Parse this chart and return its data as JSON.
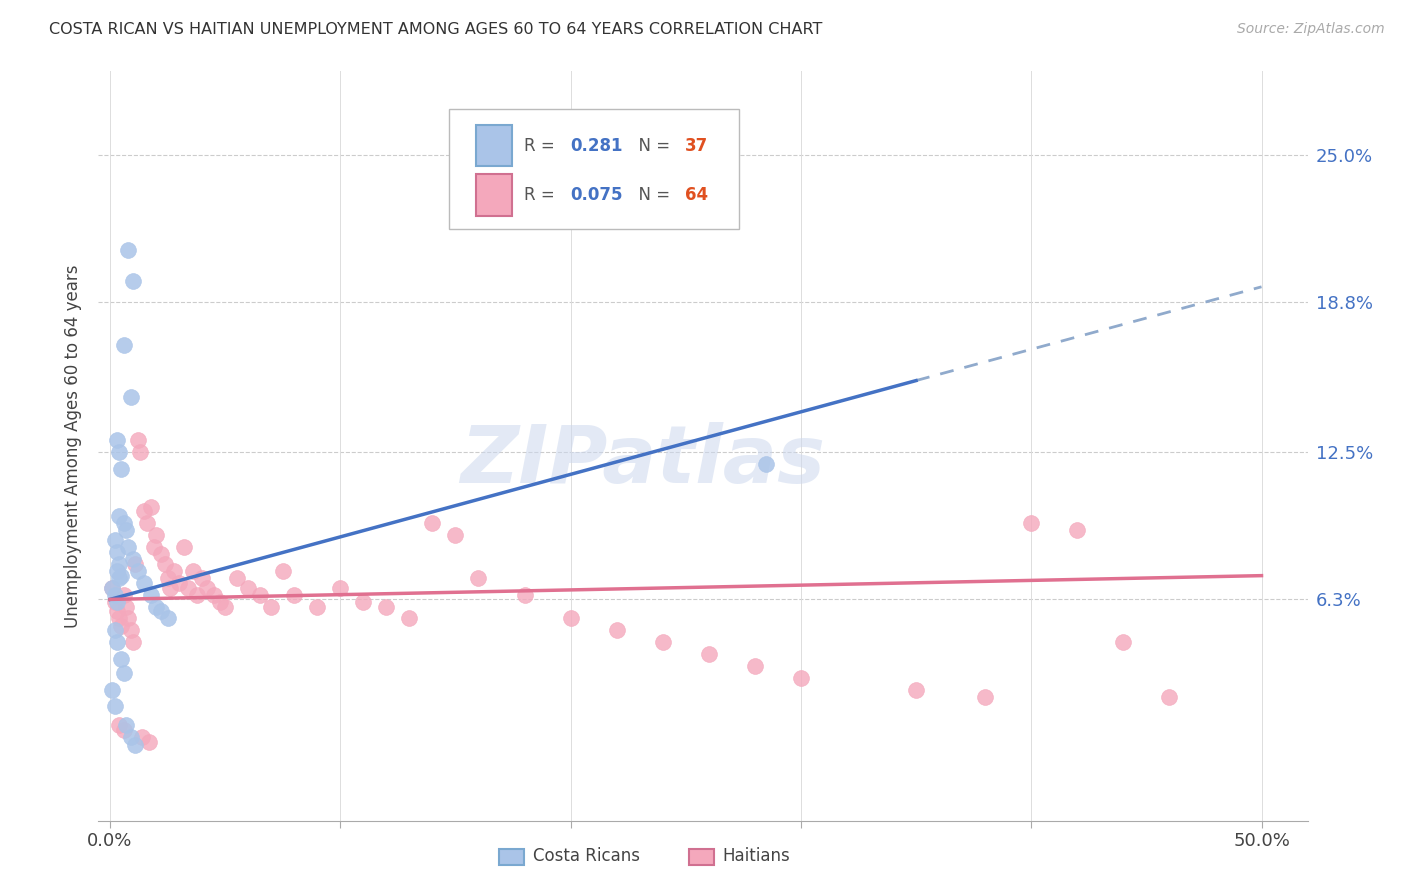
{
  "title": "COSTA RICAN VS HAITIAN UNEMPLOYMENT AMONG AGES 60 TO 64 YEARS CORRELATION CHART",
  "source": "Source: ZipAtlas.com",
  "ylabel": "Unemployment Among Ages 60 to 64 years",
  "cr_color": "#aac4e8",
  "ht_color": "#f4a8bc",
  "cr_line_color": "#4472c4",
  "ht_line_color": "#e07090",
  "cr_dash_color": "#90aacc",
  "watermark": "ZIPatlas",
  "ytick_vals": [
    0.063,
    0.125,
    0.188,
    0.25
  ],
  "ytick_labels": [
    "6.3%",
    "12.5%",
    "18.8%",
    "25.0%"
  ],
  "xtick_vals": [
    0.0,
    0.1,
    0.2,
    0.3,
    0.4,
    0.5
  ],
  "xtick_labels": [
    "0.0%",
    "",
    "",
    "",
    "",
    "50.0%"
  ],
  "xlim": [
    -0.005,
    0.52
  ],
  "ylim": [
    -0.03,
    0.285
  ],
  "cr_x": [
    0.008,
    0.01,
    0.006,
    0.009,
    0.003,
    0.004,
    0.005,
    0.004,
    0.006,
    0.002,
    0.003,
    0.004,
    0.005,
    0.001,
    0.002,
    0.003,
    0.007,
    0.008,
    0.01,
    0.012,
    0.015,
    0.018,
    0.02,
    0.022,
    0.025,
    0.003,
    0.004,
    0.285,
    0.002,
    0.003,
    0.005,
    0.006,
    0.001,
    0.002,
    0.007,
    0.009,
    0.011
  ],
  "cr_y": [
    0.21,
    0.197,
    0.17,
    0.148,
    0.13,
    0.125,
    0.118,
    0.098,
    0.095,
    0.088,
    0.083,
    0.078,
    0.073,
    0.068,
    0.065,
    0.062,
    0.092,
    0.085,
    0.08,
    0.075,
    0.07,
    0.065,
    0.06,
    0.058,
    0.055,
    0.075,
    0.072,
    0.12,
    0.05,
    0.045,
    0.038,
    0.032,
    0.025,
    0.018,
    0.01,
    0.005,
    0.002
  ],
  "ht_x": [
    0.001,
    0.002,
    0.003,
    0.004,
    0.005,
    0.006,
    0.007,
    0.008,
    0.009,
    0.01,
    0.011,
    0.012,
    0.013,
    0.015,
    0.016,
    0.018,
    0.019,
    0.02,
    0.022,
    0.024,
    0.025,
    0.026,
    0.028,
    0.03,
    0.032,
    0.034,
    0.036,
    0.038,
    0.04,
    0.042,
    0.045,
    0.048,
    0.05,
    0.055,
    0.06,
    0.065,
    0.07,
    0.075,
    0.08,
    0.09,
    0.1,
    0.11,
    0.12,
    0.13,
    0.14,
    0.15,
    0.16,
    0.18,
    0.2,
    0.22,
    0.24,
    0.26,
    0.28,
    0.3,
    0.35,
    0.38,
    0.4,
    0.42,
    0.44,
    0.46,
    0.004,
    0.006,
    0.014,
    0.017
  ],
  "ht_y": [
    0.068,
    0.062,
    0.058,
    0.055,
    0.052,
    0.065,
    0.06,
    0.055,
    0.05,
    0.045,
    0.078,
    0.13,
    0.125,
    0.1,
    0.095,
    0.102,
    0.085,
    0.09,
    0.082,
    0.078,
    0.072,
    0.068,
    0.075,
    0.07,
    0.085,
    0.068,
    0.075,
    0.065,
    0.072,
    0.068,
    0.065,
    0.062,
    0.06,
    0.072,
    0.068,
    0.065,
    0.06,
    0.075,
    0.065,
    0.06,
    0.068,
    0.062,
    0.06,
    0.055,
    0.095,
    0.09,
    0.072,
    0.065,
    0.055,
    0.05,
    0.045,
    0.04,
    0.035,
    0.03,
    0.025,
    0.022,
    0.095,
    0.092,
    0.045,
    0.022,
    0.01,
    0.008,
    0.005,
    0.003
  ]
}
